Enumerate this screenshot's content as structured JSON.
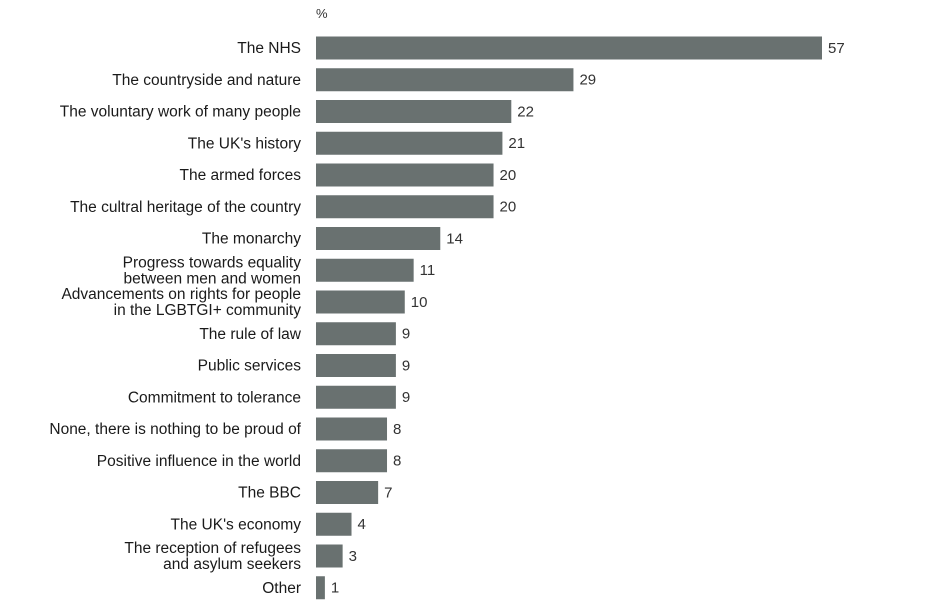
{
  "chart_data": {
    "type": "bar",
    "orientation": "horizontal",
    "unit_label": "%",
    "bar_color": "#697170",
    "xlim": [
      0,
      57
    ],
    "categories": [
      [
        "The NHS"
      ],
      [
        "The countryside and nature"
      ],
      [
        "The voluntary work of many people"
      ],
      [
        "The UK's history"
      ],
      [
        "The armed forces"
      ],
      [
        "The cultral heritage of the country"
      ],
      [
        "The monarchy"
      ],
      [
        "Progress towards equality",
        "between men and women"
      ],
      [
        "Advancements on rights for people",
        "in the LGBTGI+ community"
      ],
      [
        "The rule of law"
      ],
      [
        "Public services"
      ],
      [
        "Commitment to tolerance"
      ],
      [
        "None, there is nothing to be proud of"
      ],
      [
        "Positive influence in the world"
      ],
      [
        "The BBC"
      ],
      [
        "The UK's economy"
      ],
      [
        "The reception of refugees",
        "and asylum seekers"
      ],
      [
        "Other"
      ]
    ],
    "values": [
      57,
      29,
      22,
      21,
      20,
      20,
      14,
      11,
      10,
      9,
      9,
      9,
      8,
      8,
      7,
      4,
      3,
      1
    ]
  }
}
